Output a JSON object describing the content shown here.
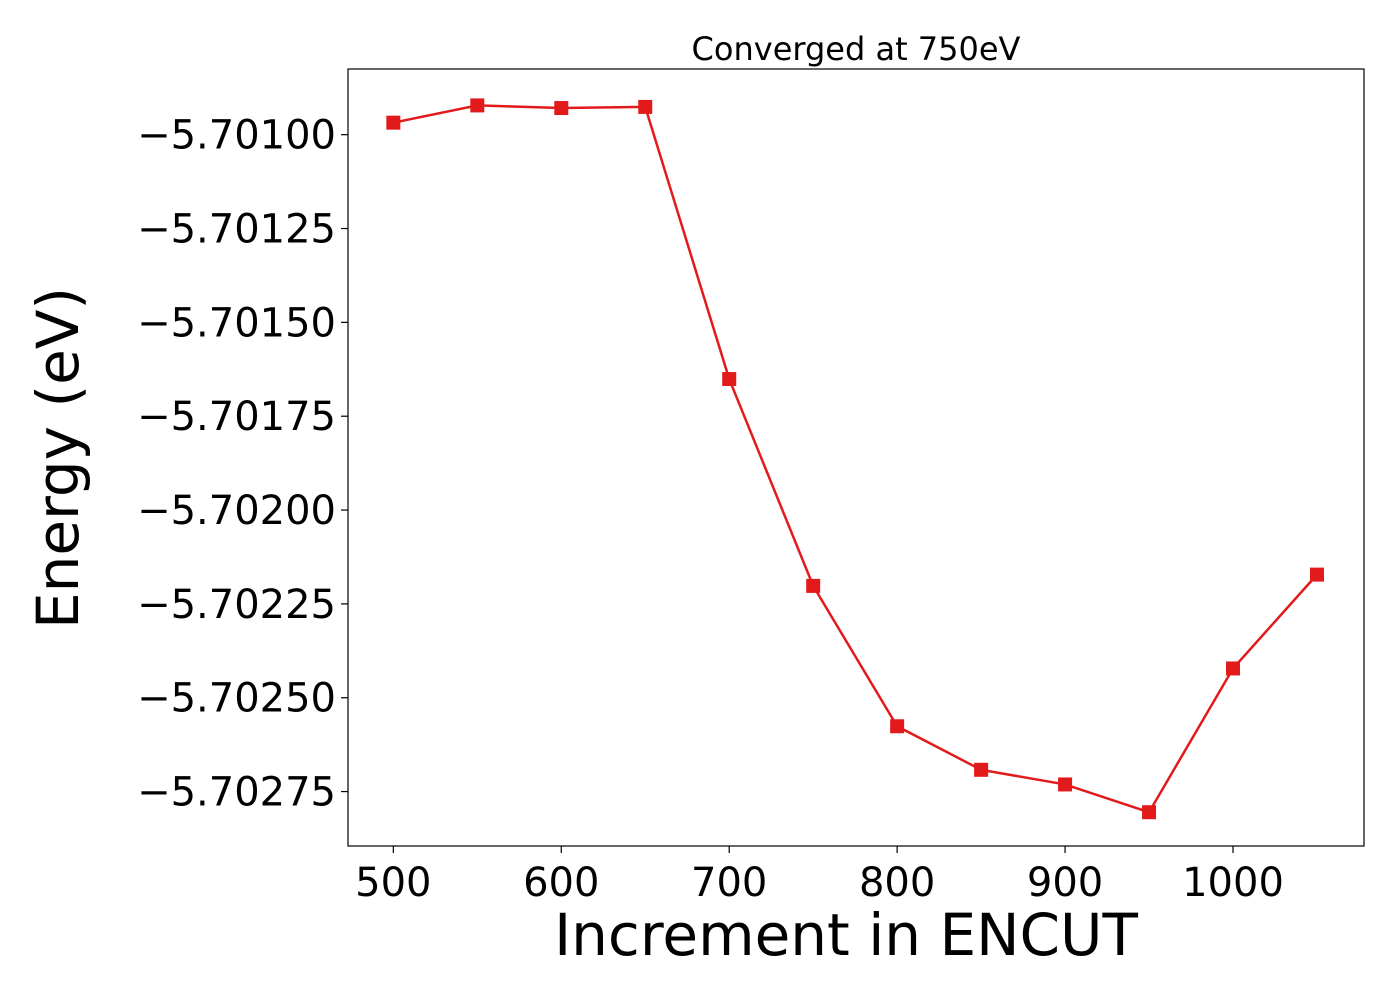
{
  "chart_data": {
    "type": "line",
    "title": "Converged at 750eV",
    "xlabel": "Increment in ENCUT",
    "ylabel": "Energy (eV)",
    "xlim": [
      473,
      1078
    ],
    "ylim": [
      -5.702895,
      -5.700825
    ],
    "x_ticks": [
      500,
      600,
      700,
      800,
      900,
      1000
    ],
    "x_tick_labels": [
      "500",
      "600",
      "700",
      "800",
      "900",
      "1000"
    ],
    "y_ticks": [
      -5.701,
      -5.70125,
      -5.7015,
      -5.70175,
      -5.702,
      -5.70225,
      -5.7025,
      -5.70275
    ],
    "y_tick_labels": [
      "−5.70100",
      "−5.70125",
      "−5.70150",
      "−5.70175",
      "−5.70200",
      "−5.70225",
      "−5.70250",
      "−5.70275"
    ],
    "grid": false,
    "series": [
      {
        "color": "#e31a1c",
        "marker": "square",
        "x": [
          500,
          550,
          600,
          650,
          700,
          750,
          800,
          850,
          900,
          950,
          1000,
          1050
        ],
        "y": [
          -5.700968,
          -5.700922,
          -5.700929,
          -5.700926,
          -5.701651,
          -5.702202,
          -5.702576,
          -5.702692,
          -5.702731,
          -5.702805,
          -5.702422,
          -5.702172
        ]
      }
    ]
  }
}
